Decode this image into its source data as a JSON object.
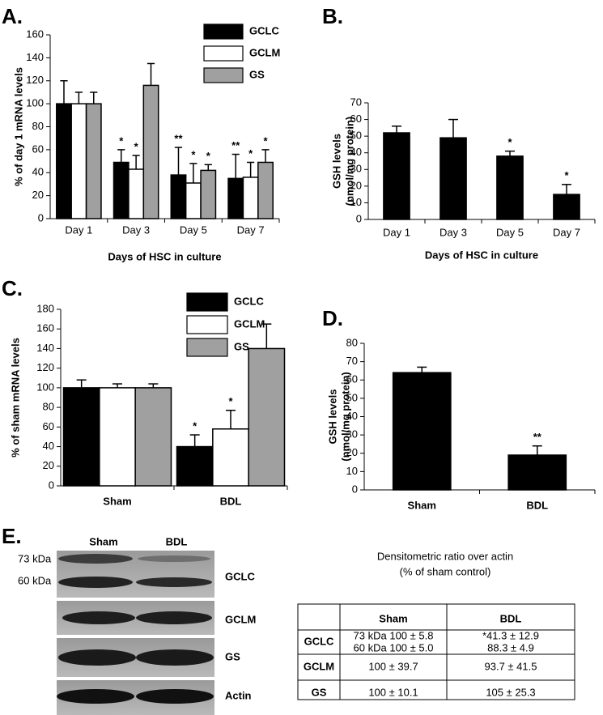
{
  "chart_data": [
    {
      "type": "bar",
      "panel_label": "A.",
      "ylabel": "% of day 1 mRNA levels",
      "xlabel": "Days of HSC in culture",
      "categories": [
        "Day 1",
        "Day 3",
        "Day 5",
        "Day 7"
      ],
      "series": [
        {
          "name": "GCLC",
          "color": "#000000",
          "values": [
            100,
            49,
            38,
            35
          ],
          "errors": [
            20,
            11,
            24,
            21
          ],
          "significance": [
            null,
            "*",
            "**",
            "**"
          ]
        },
        {
          "name": "GCLM",
          "color": "#ffffff",
          "values": [
            100,
            43,
            31,
            36
          ],
          "errors": [
            10,
            12,
            17,
            13
          ],
          "significance": [
            null,
            "*",
            "*",
            "*"
          ]
        },
        {
          "name": "GS",
          "color": "#a0a0a0",
          "values": [
            100,
            116,
            42,
            49
          ],
          "errors": [
            10,
            19,
            5,
            11
          ],
          "significance": [
            null,
            null,
            "*",
            "*"
          ]
        }
      ],
      "ylim": [
        0,
        160
      ],
      "yticks": [
        0,
        20,
        40,
        60,
        80,
        100,
        120,
        140,
        160
      ]
    },
    {
      "type": "bar",
      "panel_label": "B.",
      "ylabel": [
        "GSH levels",
        "(nmol/mg protein)"
      ],
      "xlabel": "Days of HSC in culture",
      "categories": [
        "Day 1",
        "Day 3",
        "Day 5",
        "Day 7"
      ],
      "values": [
        52,
        49,
        38,
        15
      ],
      "errors": [
        4,
        11,
        3,
        6
      ],
      "significance": [
        null,
        null,
        "*",
        "*"
      ],
      "color": "#000000",
      "ylim": [
        0,
        70
      ],
      "yticks": [
        0,
        10,
        20,
        30,
        40,
        50,
        60,
        70
      ]
    },
    {
      "type": "bar",
      "panel_label": "C.",
      "ylabel": "% of sham mRNA levels",
      "categories": [
        "Sham",
        "BDL"
      ],
      "series": [
        {
          "name": "GCLC",
          "color": "#000000",
          "values": [
            100,
            40
          ],
          "errors": [
            8,
            12
          ],
          "significance": [
            null,
            "*"
          ]
        },
        {
          "name": "GCLM",
          "color": "#ffffff",
          "values": [
            100,
            58
          ],
          "errors": [
            4,
            19
          ],
          "significance": [
            null,
            "*"
          ]
        },
        {
          "name": "GS",
          "color": "#a0a0a0",
          "values": [
            100,
            140
          ],
          "errors": [
            4,
            25
          ],
          "significance": [
            null,
            null
          ]
        }
      ],
      "ylim": [
        0,
        180
      ],
      "yticks": [
        0,
        20,
        40,
        60,
        80,
        100,
        120,
        140,
        160,
        180
      ]
    },
    {
      "type": "bar",
      "panel_label": "D.",
      "ylabel": [
        "GSH levels",
        "(nmol/mg protein)"
      ],
      "categories": [
        "Sham",
        "BDL"
      ],
      "values": [
        64,
        19
      ],
      "errors": [
        3,
        5
      ],
      "significance": [
        null,
        "**"
      ],
      "color": "#000000",
      "ylim": [
        0,
        80
      ],
      "yticks": [
        0,
        10,
        20,
        30,
        40,
        50,
        60,
        70,
        80
      ]
    }
  ],
  "panel_e": {
    "panel_label": "E.",
    "blot": {
      "lanes": [
        "Sham",
        "BDL"
      ],
      "markers": [
        "73 kDa",
        "60 kDa"
      ],
      "rows": [
        "GCLC",
        "GCLM",
        "GS",
        "Actin"
      ]
    },
    "table": {
      "title": [
        "Densitometric ratio over actin",
        "(% of sham control)"
      ],
      "columns": [
        "Sham",
        "BDL"
      ],
      "rows": [
        {
          "label": "GCLC",
          "cells": [
            [
              "73 kDa 100 ± 5.8",
              "60 kDa 100 ± 5.0"
            ],
            [
              "*41.3 ± 12.9",
              "88.3 ± 4.9"
            ]
          ]
        },
        {
          "label": "GCLM",
          "cells": [
            [
              "100 ± 39.7"
            ],
            [
              "93.7 ± 41.5"
            ]
          ]
        },
        {
          "label": "GS",
          "cells": [
            [
              "100 ± 10.1"
            ],
            [
              "105 ± 25.3"
            ]
          ]
        }
      ]
    }
  }
}
